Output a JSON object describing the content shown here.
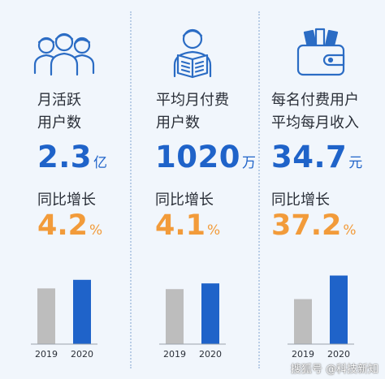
{
  "columns": [
    {
      "label": "月活跃\n用户数",
      "value": "2.3",
      "unit": "亿",
      "yoy_label": "同比增长",
      "yoy_value": "4.2",
      "yoy_unit": "%",
      "icon": "people-group-icon",
      "bars": [
        0.78,
        0.9
      ]
    },
    {
      "label": "平均月付费\n用户数",
      "value": "1020",
      "unit": "万",
      "yoy_label": "同比增长",
      "yoy_value": "4.1",
      "yoy_unit": "%",
      "icon": "reader-icon",
      "bars": [
        0.77,
        0.85
      ]
    },
    {
      "label": "每名付费用户\n平均每月收入",
      "value": "34.7",
      "unit": "元",
      "yoy_label": "同比增长",
      "yoy_value": "37.2",
      "yoy_unit": "%",
      "icon": "wallet-icon",
      "bars": [
        0.63,
        0.96
      ]
    }
  ],
  "years": [
    "2019",
    "2020"
  ],
  "colors": {
    "blue": "#1f63c9",
    "orange": "#f29b3a",
    "gray_bar": "#bdbdbd",
    "icon_blue": "#2b6cc4"
  },
  "watermark": "搜狐号 @科技新知"
}
